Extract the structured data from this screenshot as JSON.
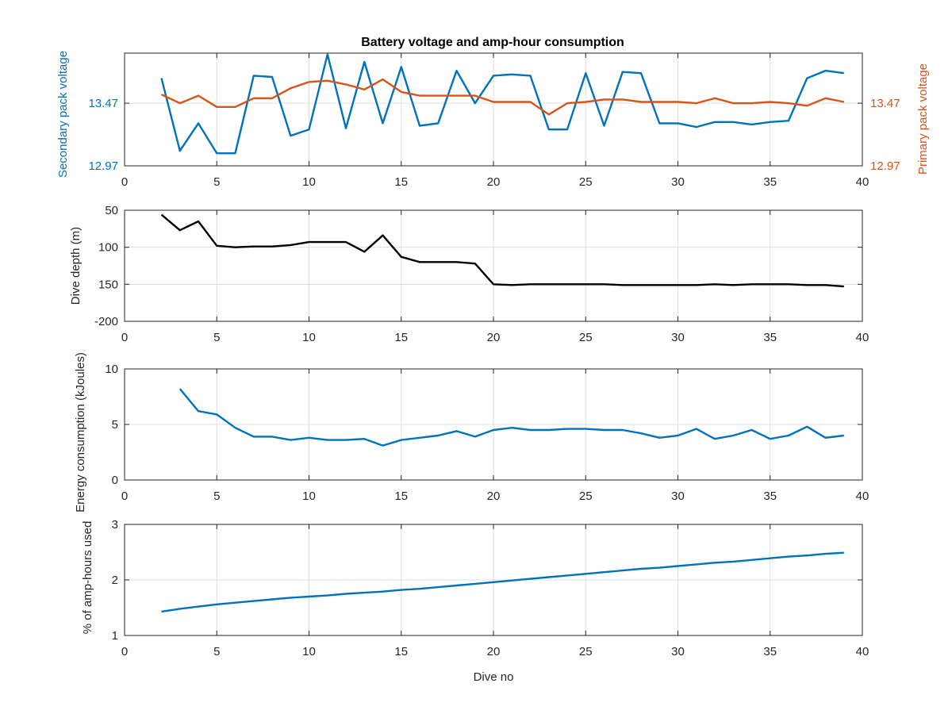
{
  "figure": {
    "title": "Battery voltage and amp-hour consumption"
  },
  "chart_data": [
    {
      "type": "line",
      "title": "Battery voltage and amp-hour consumption",
      "xlabel": "",
      "ylabel": "Secondary pack voltage",
      "ylabel_right": "Primary pack voltage",
      "xlim": [
        0,
        40
      ],
      "ylim": [
        12.97,
        13.87
      ],
      "x_ticks": [
        0,
        5,
        10,
        15,
        20,
        25,
        30,
        35,
        40
      ],
      "y_ticks": [
        12.97,
        13.47
      ],
      "y_tick_labels": [
        "12.97",
        "13.47"
      ],
      "y_ticks_right": [
        12.97,
        13.47
      ],
      "y_tick_labels_right": [
        "12.97",
        "13.47"
      ],
      "grid": true,
      "series": [
        {
          "axis": "left",
          "color": "#0072BD",
          "x": [
            2,
            3,
            4,
            5,
            6,
            7,
            8,
            9,
            10,
            11,
            12,
            13,
            14,
            15,
            16,
            17,
            18,
            19,
            20,
            21,
            22,
            23,
            24,
            25,
            26,
            27,
            28,
            29,
            30,
            31,
            32,
            33,
            34,
            35,
            36,
            37,
            38,
            39
          ],
          "values": [
            13.67,
            13.09,
            13.31,
            13.07,
            13.07,
            13.69,
            13.68,
            13.21,
            13.26,
            13.86,
            13.27,
            13.8,
            13.31,
            13.76,
            13.29,
            13.31,
            13.73,
            13.47,
            13.69,
            13.7,
            13.69,
            13.26,
            13.26,
            13.71,
            13.29,
            13.72,
            13.71,
            13.31,
            13.31,
            13.28,
            13.32,
            13.32,
            13.3,
            13.32,
            13.33,
            13.67,
            13.73,
            13.71
          ]
        },
        {
          "axis": "right",
          "color": "#D95319",
          "x": [
            2,
            3,
            4,
            5,
            6,
            7,
            8,
            9,
            10,
            11,
            12,
            13,
            14,
            15,
            16,
            17,
            18,
            19,
            20,
            21,
            22,
            23,
            24,
            25,
            26,
            27,
            28,
            29,
            30,
            31,
            32,
            33,
            34,
            35,
            36,
            37,
            38,
            39
          ],
          "values": [
            13.54,
            13.47,
            13.53,
            13.44,
            13.44,
            13.51,
            13.51,
            13.59,
            13.64,
            13.65,
            13.62,
            13.58,
            13.66,
            13.56,
            13.53,
            13.53,
            13.53,
            13.53,
            13.48,
            13.48,
            13.48,
            13.38,
            13.47,
            13.48,
            13.5,
            13.5,
            13.48,
            13.48,
            13.48,
            13.47,
            13.51,
            13.47,
            13.47,
            13.48,
            13.47,
            13.45,
            13.51,
            13.48
          ]
        }
      ]
    },
    {
      "type": "line",
      "title": "",
      "xlabel": "",
      "ylabel": "Dive depth (m)",
      "xlim": [
        0,
        40
      ],
      "ylim": [
        -200,
        -50
      ],
      "x_ticks": [
        0,
        5,
        10,
        15,
        20,
        25,
        30,
        35,
        40
      ],
      "y_ticks": [
        -200,
        -150,
        -100,
        -50
      ],
      "y_tick_labels": [
        "-200",
        "150",
        "100",
        "50"
      ],
      "grid": true,
      "series": [
        {
          "color": "#000000",
          "x": [
            2,
            3,
            4,
            5,
            6,
            7,
            8,
            9,
            10,
            11,
            12,
            13,
            14,
            15,
            16,
            17,
            18,
            19,
            20,
            21,
            22,
            23,
            24,
            25,
            26,
            27,
            28,
            29,
            30,
            31,
            32,
            33,
            34,
            35,
            36,
            37,
            38,
            39
          ],
          "values": [
            -56,
            -77,
            -65,
            -98,
            -100,
            -99,
            -99,
            -97,
            -93,
            -93,
            -93,
            -106,
            -84,
            -113,
            -120,
            -120,
            -120,
            -122,
            -150,
            -151,
            -150,
            -150,
            -150,
            -150,
            -150,
            -151,
            -151,
            -151,
            -151,
            -151,
            -150,
            -151,
            -150,
            -150,
            -150,
            -151,
            -151,
            -153
          ]
        }
      ]
    },
    {
      "type": "line",
      "title": "",
      "xlabel": "",
      "ylabel": "Energy consumption (kJoules)",
      "xlim": [
        0,
        40
      ],
      "ylim": [
        0,
        10
      ],
      "x_ticks": [
        0,
        5,
        10,
        15,
        20,
        25,
        30,
        35,
        40
      ],
      "y_ticks": [
        0,
        5,
        10
      ],
      "y_tick_labels": [
        "0",
        "5",
        "10"
      ],
      "grid": true,
      "series": [
        {
          "color": "#0072BD",
          "x": [
            3,
            4,
            5,
            6,
            7,
            8,
            9,
            10,
            11,
            12,
            13,
            14,
            15,
            16,
            17,
            18,
            19,
            20,
            21,
            22,
            23,
            24,
            25,
            26,
            27,
            28,
            29,
            30,
            31,
            32,
            33,
            34,
            35,
            36,
            37,
            38,
            39
          ],
          "values": [
            8.2,
            6.2,
            5.9,
            4.7,
            3.9,
            3.9,
            3.6,
            3.8,
            3.6,
            3.6,
            3.7,
            3.1,
            3.6,
            3.8,
            4.0,
            4.4,
            3.9,
            4.5,
            4.7,
            4.5,
            4.5,
            4.6,
            4.6,
            4.5,
            4.5,
            4.2,
            3.8,
            4.0,
            4.6,
            3.7,
            4.0,
            4.5,
            3.7,
            4.0,
            4.8,
            3.8,
            4.0
          ]
        }
      ]
    },
    {
      "type": "line",
      "title": "",
      "xlabel": "Dive no",
      "ylabel": "% of amp-hours used",
      "xlim": [
        0,
        40
      ],
      "ylim": [
        1,
        3
      ],
      "x_ticks": [
        0,
        5,
        10,
        15,
        20,
        25,
        30,
        35,
        40
      ],
      "y_ticks": [
        1,
        2,
        3
      ],
      "y_tick_labels": [
        "1",
        "2",
        "3"
      ],
      "grid": true,
      "series": [
        {
          "color": "#0072BD",
          "x": [
            2,
            3,
            4,
            5,
            6,
            7,
            8,
            9,
            10,
            11,
            12,
            13,
            14,
            15,
            16,
            17,
            18,
            19,
            20,
            21,
            22,
            23,
            24,
            25,
            26,
            27,
            28,
            29,
            30,
            31,
            32,
            33,
            34,
            35,
            36,
            37,
            38,
            39
          ],
          "values": [
            1.43,
            1.48,
            1.52,
            1.56,
            1.59,
            1.62,
            1.65,
            1.68,
            1.7,
            1.72,
            1.75,
            1.77,
            1.79,
            1.82,
            1.84,
            1.87,
            1.9,
            1.93,
            1.96,
            1.99,
            2.02,
            2.05,
            2.08,
            2.11,
            2.14,
            2.17,
            2.2,
            2.22,
            2.25,
            2.28,
            2.31,
            2.33,
            2.36,
            2.39,
            2.42,
            2.44,
            2.47,
            2.49
          ]
        }
      ]
    }
  ]
}
